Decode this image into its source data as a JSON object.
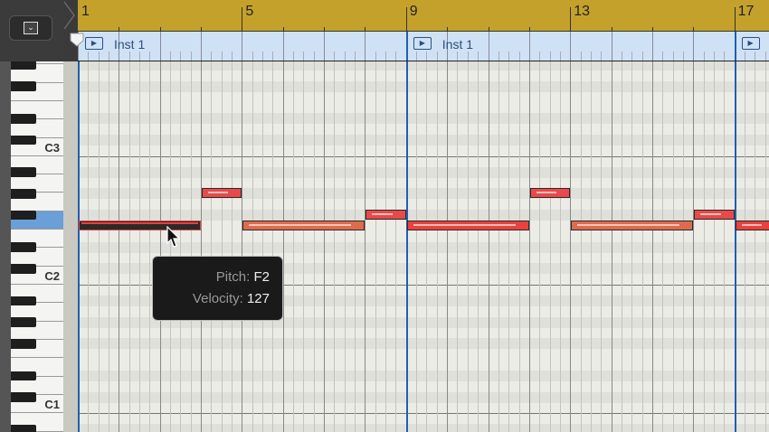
{
  "ruler": {
    "bars": [
      "1",
      "5",
      "9",
      "13",
      "17"
    ]
  },
  "regions": [
    {
      "name": "Inst 1",
      "start_bar": 1
    },
    {
      "name": "Inst 1",
      "start_bar": 9
    },
    {
      "name": "",
      "start_bar": 17
    }
  ],
  "keyboard": {
    "labels": [
      "C3",
      "C2",
      "C1"
    ],
    "highlighted_key": "F2"
  },
  "notes": [
    {
      "pitch": "F2",
      "start_beat": 0,
      "length_beats": 12,
      "color": "#e8413f",
      "selected": true
    },
    {
      "pitch": "G#2",
      "start_beat": 12,
      "length_beats": 4,
      "color": "#e8494a"
    },
    {
      "pitch": "F2",
      "start_beat": 16,
      "length_beats": 12,
      "color": "#de6a4f"
    },
    {
      "pitch": "F#2",
      "start_beat": 28,
      "length_beats": 4,
      "color": "#e8494a"
    },
    {
      "pitch": "F2",
      "start_beat": 32,
      "length_beats": 12,
      "color": "#e8413f"
    },
    {
      "pitch": "G#2",
      "start_beat": 44,
      "length_beats": 4,
      "color": "#e8494a"
    },
    {
      "pitch": "F2",
      "start_beat": 48,
      "length_beats": 12,
      "color": "#de6a4f"
    },
    {
      "pitch": "F#2",
      "start_beat": 60,
      "length_beats": 4,
      "color": "#e8494a"
    },
    {
      "pitch": "F2",
      "start_beat": 64,
      "length_beats": 4,
      "color": "#e8413f"
    }
  ],
  "tooltip": {
    "pitch_label": "Pitch:",
    "pitch_value": "F2",
    "velocity_label": "Velocity:",
    "velocity_value": "127"
  },
  "colors": {
    "ruler": "#c4a12b",
    "region": "#cfe2f5",
    "region_line": "#1f5fb0",
    "highlight_key": "#6a9fd8"
  }
}
